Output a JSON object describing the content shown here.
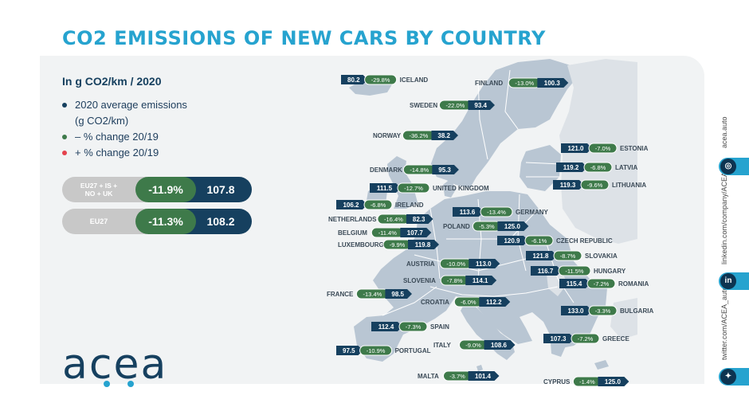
{
  "title": "CO2 EMISSIONS OF NEW CARS BY COUNTRY",
  "subtitle": "In g CO2/km / 2020",
  "colors": {
    "title": "#26a3cf",
    "navy": "#16405f",
    "green": "#3e7a4a",
    "red": "#e4424d",
    "land_selected": "#b9c6d3",
    "land_other": "#dde2e7",
    "panel": "#f1f3f4",
    "logo_dots": "#26a3cf"
  },
  "legend": [
    {
      "text": "2020 average emissions",
      "text2": "(g CO2/km)",
      "color": "#16405f"
    },
    {
      "text": "– % change 20/19",
      "color": "#3e7a4a"
    },
    {
      "text": "+ % change 20/19",
      "color": "#e4424d"
    }
  ],
  "summary": [
    {
      "label_line1": "EU27 + IS +",
      "label_line2": "NO + UK",
      "change": "-11.9%",
      "value": "107.8"
    },
    {
      "label_line1": "EU27",
      "label_line2": "",
      "change": "-11.3%",
      "value": "108.2"
    }
  ],
  "logo_text": "acea",
  "social": {
    "acea_auto": "acea.auto",
    "linkedin": "linkedin.com/company/ACEA/",
    "twitter": "twitter.com/ACEA_auto",
    "linkedin_icon": "linkedin-icon",
    "globe_icon": "globe-icon",
    "twitter_icon": "twitter-icon"
  },
  "chart_data": {
    "type": "table",
    "title": "CO2 EMISSIONS OF NEW CARS BY COUNTRY",
    "unit": "In g CO2/km / 2020",
    "columns": [
      "country",
      "2020 average emissions (g CO2/km)",
      "% change 20/19"
    ],
    "rows": [
      {
        "country": "ICELAND",
        "value": "80.2",
        "change": "-29.8%"
      },
      {
        "country": "FINLAND",
        "value": "100.3",
        "change": "-13.0%"
      },
      {
        "country": "SWEDEN",
        "value": "93.4",
        "change": "-22.0%"
      },
      {
        "country": "NORWAY",
        "value": "38.2",
        "change": "-36.2%"
      },
      {
        "country": "ESTONIA",
        "value": "121.0",
        "change": "-7.0%"
      },
      {
        "country": "LATVIA",
        "value": "119.2",
        "change": "-6.8%"
      },
      {
        "country": "LITHUANIA",
        "value": "119.3",
        "change": "-9.6%"
      },
      {
        "country": "DENMARK",
        "value": "95.3",
        "change": "-14.8%"
      },
      {
        "country": "UNITED KINGDOM",
        "value": "111.5",
        "change": "-12.7%"
      },
      {
        "country": "IRELAND",
        "value": "106.2",
        "change": "-6.8%"
      },
      {
        "country": "GERMANY",
        "value": "113.6",
        "change": "-13.4%"
      },
      {
        "country": "NETHERLANDS",
        "value": "82.3",
        "change": "-16.4%"
      },
      {
        "country": "POLAND",
        "value": "125.0",
        "change": "-5.3%"
      },
      {
        "country": "BELGIUM",
        "value": "107.7",
        "change": "-11.4%"
      },
      {
        "country": "CZECH REPUBLIC",
        "value": "120.9",
        "change": "-6.1%"
      },
      {
        "country": "LUXEMBOURG",
        "value": "119.8",
        "change": "-9.9%"
      },
      {
        "country": "SLOVAKIA",
        "value": "121.8",
        "change": "-8.7%"
      },
      {
        "country": "AUSTRIA",
        "value": "113.0",
        "change": "-10.0%"
      },
      {
        "country": "HUNGARY",
        "value": "116.7",
        "change": "-11.5%"
      },
      {
        "country": "SLOVENIA",
        "value": "114.1",
        "change": "-7.8%"
      },
      {
        "country": "ROMANIA",
        "value": "115.4",
        "change": "-7.2%"
      },
      {
        "country": "FRANCE",
        "value": "98.5",
        "change": "-13.4%"
      },
      {
        "country": "CROATIA",
        "value": "112.2",
        "change": "-6.0%"
      },
      {
        "country": "BULGARIA",
        "value": "133.0",
        "change": "-3.3%"
      },
      {
        "country": "SPAIN",
        "value": "112.4",
        "change": "-7.3%"
      },
      {
        "country": "GREECE",
        "value": "107.3",
        "change": "-7.2%"
      },
      {
        "country": "ITALY",
        "value": "108.6",
        "change": "-9.0%"
      },
      {
        "country": "PORTUGAL",
        "value": "97.5",
        "change": "-10.9%"
      },
      {
        "country": "MALTA",
        "value": "101.4",
        "change": "-3.7%"
      },
      {
        "country": "CYPRUS",
        "value": "125.0",
        "change": "-1.4%"
      }
    ]
  }
}
